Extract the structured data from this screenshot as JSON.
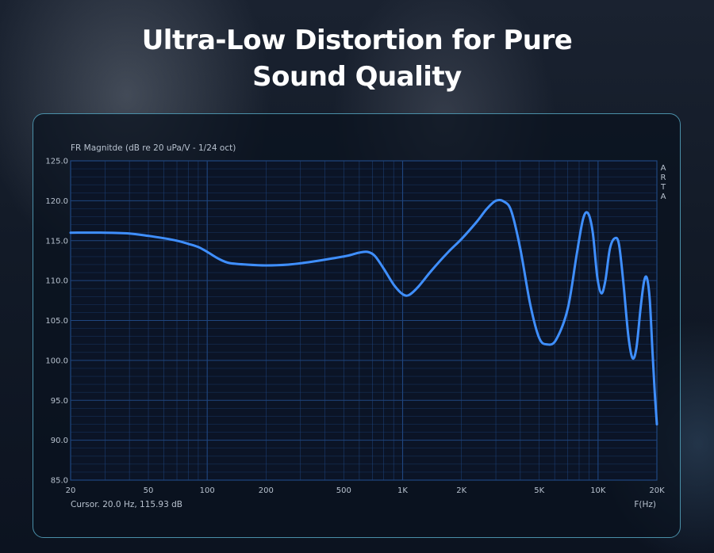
{
  "headline": {
    "line1": "Ultra-Low Distortion for Pure",
    "line2": "Sound Quality"
  },
  "colors": {
    "curve": "#3f8fff",
    "grid": "#1f4680",
    "plot_bg": "#0b1426",
    "frame": "#4a8fa8"
  },
  "chart_data": {
    "type": "line",
    "title": "FR Magnitde (dB re 20 uPa/V - 1/24 oct)",
    "xlabel": "F(Hz)",
    "ylabel": "",
    "x_scale": "log",
    "xlim": [
      20,
      20000
    ],
    "ylim": [
      85,
      125
    ],
    "x_ticks": [
      {
        "value": 20,
        "label": "20"
      },
      {
        "value": 50,
        "label": "50"
      },
      {
        "value": 100,
        "label": "100"
      },
      {
        "value": 200,
        "label": "200"
      },
      {
        "value": 500,
        "label": "500"
      },
      {
        "value": 1000,
        "label": "1K"
      },
      {
        "value": 2000,
        "label": "2K"
      },
      {
        "value": 5000,
        "label": "5K"
      },
      {
        "value": 10000,
        "label": "10K"
      },
      {
        "value": 20000,
        "label": "20K"
      }
    ],
    "y_ticks": [
      {
        "value": 125,
        "label": "125.0"
      },
      {
        "value": 120,
        "label": "120.0"
      },
      {
        "value": 115,
        "label": "115.0"
      },
      {
        "value": 110,
        "label": "110.0"
      },
      {
        "value": 105,
        "label": "105.0"
      },
      {
        "value": 100,
        "label": "100.0"
      },
      {
        "value": 95,
        "label": "95.0"
      },
      {
        "value": 90,
        "label": "90.0"
      },
      {
        "value": 85,
        "label": "85.0"
      }
    ],
    "grid": true,
    "watermark": "ARTA",
    "cursor_readout": "Cursor.  20.0 Hz,  115.93 dB",
    "series": [
      {
        "points": [
          [
            20,
            116.0
          ],
          [
            30,
            116.0
          ],
          [
            40,
            115.9
          ],
          [
            50,
            115.6
          ],
          [
            60,
            115.3
          ],
          [
            70,
            115.0
          ],
          [
            80,
            114.6
          ],
          [
            90,
            114.2
          ],
          [
            100,
            113.6
          ],
          [
            115,
            112.7
          ],
          [
            130,
            112.2
          ],
          [
            160,
            112.0
          ],
          [
            200,
            111.9
          ],
          [
            260,
            112.0
          ],
          [
            330,
            112.3
          ],
          [
            420,
            112.7
          ],
          [
            520,
            113.1
          ],
          [
            600,
            113.5
          ],
          [
            660,
            113.6
          ],
          [
            720,
            113.1
          ],
          [
            800,
            111.5
          ],
          [
            900,
            109.5
          ],
          [
            1000,
            108.3
          ],
          [
            1080,
            108.2
          ],
          [
            1200,
            109.2
          ],
          [
            1400,
            111.2
          ],
          [
            1700,
            113.5
          ],
          [
            2000,
            115.2
          ],
          [
            2400,
            117.4
          ],
          [
            2700,
            119.0
          ],
          [
            3000,
            120.0
          ],
          [
            3300,
            119.9
          ],
          [
            3600,
            118.7
          ],
          [
            4000,
            114.0
          ],
          [
            4500,
            107.0
          ],
          [
            5000,
            102.8
          ],
          [
            5500,
            102.0
          ],
          [
            6100,
            102.6
          ],
          [
            7000,
            106.5
          ],
          [
            7800,
            113.5
          ],
          [
            8400,
            117.8
          ],
          [
            8900,
            118.4
          ],
          [
            9400,
            116.0
          ],
          [
            9900,
            110.5
          ],
          [
            10400,
            108.4
          ],
          [
            10900,
            110.0
          ],
          [
            11500,
            114.0
          ],
          [
            12200,
            115.3
          ],
          [
            12800,
            114.5
          ],
          [
            13500,
            109.5
          ],
          [
            14300,
            103.0
          ],
          [
            15000,
            100.3
          ],
          [
            15700,
            101.5
          ],
          [
            16500,
            106.5
          ],
          [
            17200,
            109.9
          ],
          [
            17800,
            110.3
          ],
          [
            18400,
            107.5
          ],
          [
            19000,
            101.0
          ],
          [
            19500,
            96.0
          ],
          [
            20000,
            92.0
          ]
        ]
      }
    ]
  }
}
